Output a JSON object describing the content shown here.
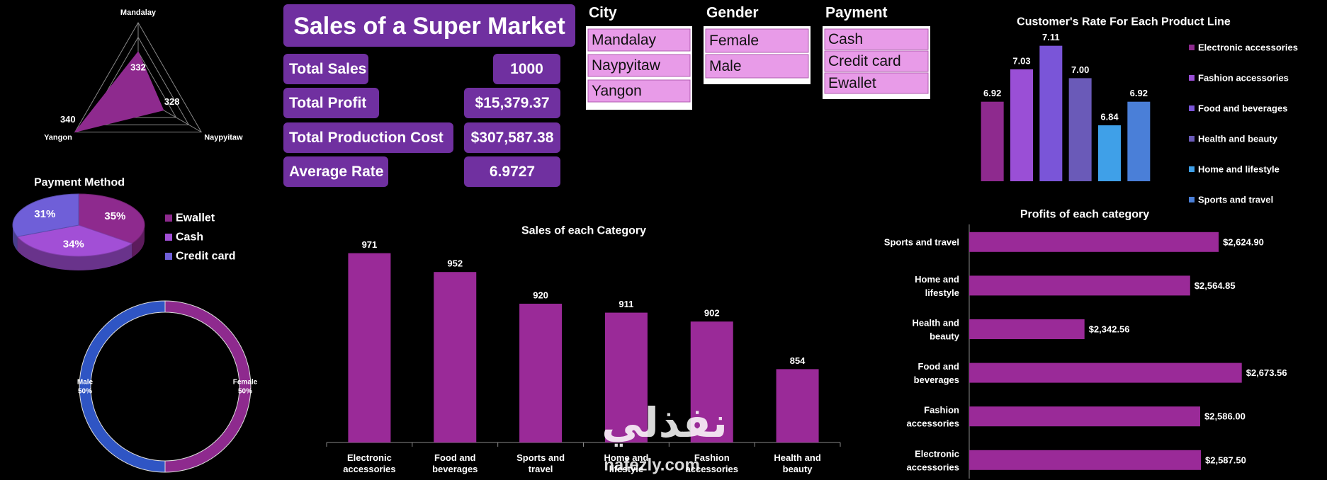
{
  "header": {
    "title": "Sales of a Super Market"
  },
  "kpis": [
    {
      "label": "Total Sales",
      "value": "1000"
    },
    {
      "label": "Total Profit",
      "value": "$15,379.37"
    },
    {
      "label": "Total Production Cost",
      "value": "$307,587.38"
    },
    {
      "label": "Average Rate",
      "value": "6.9727"
    }
  ],
  "slicers": [
    {
      "title": "City",
      "items": [
        "Mandalay",
        "Naypyitaw",
        "Yangon"
      ]
    },
    {
      "title": "Gender",
      "items": [
        "Female",
        "Male"
      ]
    },
    {
      "title": "Payment",
      "items": [
        "Cash",
        "Credit card",
        "Ewallet"
      ]
    }
  ],
  "chart_data": [
    {
      "type": "radar",
      "categories": [
        "Mandalay",
        "Naypyitaw",
        "Yangon"
      ],
      "values": [
        332,
        328,
        340
      ],
      "color": "#8e2a8e",
      "rlim": [
        320,
        340
      ],
      "rticks": [
        324,
        328,
        332,
        336,
        340
      ]
    },
    {
      "type": "pie",
      "title": "Payment Method",
      "categories": [
        "Ewallet",
        "Cash",
        "Credit card"
      ],
      "values": [
        35,
        34,
        31
      ],
      "value_labels": [
        "35%",
        "34%",
        "31%"
      ],
      "colors": [
        "#8e2a8e",
        "#a24fd6",
        "#6f5fd8"
      ],
      "legend": "right"
    },
    {
      "type": "donut",
      "categories": [
        "Female",
        "Male"
      ],
      "values": [
        50,
        50
      ],
      "value_labels": [
        "50%",
        "50%"
      ],
      "colors": [
        "#8e2a8e",
        "#2f55c4"
      ]
    },
    {
      "type": "bar",
      "title": "Sales of each Category",
      "categories": [
        "Electronic accessories",
        "Food and beverages",
        "Sports and travel",
        "Home and lifestyle",
        "Fashion accessories",
        "Health and beauty"
      ],
      "values": [
        971,
        952,
        920,
        911,
        902,
        854
      ],
      "color": "#9a2a98",
      "ylim": [
        780,
        1000
      ]
    },
    {
      "type": "bar",
      "title": "Customer's Rate For Each Product Line",
      "categories": [
        "Electronic accessories",
        "Fashion accessories",
        "Food and beverages",
        "Health and beauty",
        "Home and lifestyle",
        "Sports and travel"
      ],
      "values": [
        6.92,
        7.03,
        7.11,
        7.0,
        6.84,
        6.92
      ],
      "value_labels": [
        "6.92",
        "7.03",
        "7.11",
        "7.00",
        "6.84",
        "6.92"
      ],
      "colors": [
        "#8e2a8e",
        "#9a4fd6",
        "#7a55d8",
        "#6a5ab8",
        "#3fa0e8",
        "#4a7fd8"
      ],
      "ylim": [
        6.65,
        7.15
      ],
      "legend": "right"
    },
    {
      "type": "hbar",
      "title": "Profits of each category",
      "categories": [
        "Sports and travel",
        "Home and lifestyle",
        "Health and beauty",
        "Food and beverages",
        "Fashion accessories",
        "Electronic accessories"
      ],
      "values": [
        2624.9,
        2564.85,
        2342.56,
        2673.56,
        2586.0,
        2587.5
      ],
      "value_labels": [
        "$2,624.90",
        "$2,564.85",
        "$2,342.56",
        "$2,673.56",
        "$2,586.00",
        "$2,587.50"
      ],
      "color": "#9a2a98",
      "xlim": [
        2100,
        2750
      ]
    }
  ],
  "watermark": {
    "logo": "نفذلي",
    "site": "nafezly.com"
  }
}
